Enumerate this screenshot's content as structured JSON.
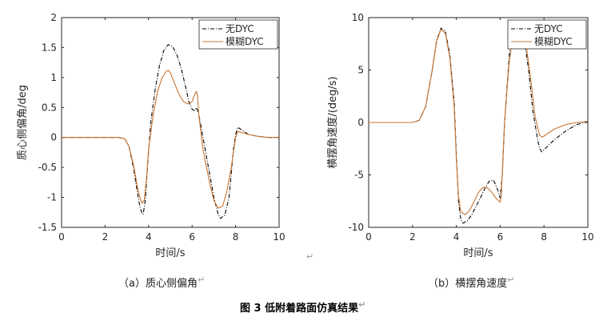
{
  "chart_data": [
    {
      "type": "line",
      "xlabel": "时间/s",
      "ylabel": "质心侧偏角/deg",
      "xlim": [
        0,
        10
      ],
      "ylim": [
        -1.5,
        2
      ],
      "xticks": [
        "0",
        "2",
        "4",
        "6",
        "8",
        "10"
      ],
      "yticks": [
        "-1.5",
        "-1",
        "-0.5",
        "0",
        "0.5",
        "1",
        "1.5",
        "2"
      ],
      "legend_position": "top-right",
      "caption": "（a）质心侧偏角",
      "series": [
        {
          "name": "无DYC",
          "color": "#000000",
          "style": "dashdot",
          "x": [
            0,
            2.6,
            2.9,
            3.1,
            3.3,
            3.5,
            3.6,
            3.7,
            3.75,
            3.85,
            3.95,
            4.1,
            4.3,
            4.5,
            4.7,
            4.9,
            5.1,
            5.3,
            5.5,
            5.7,
            5.85,
            6.0,
            6.1,
            6.2,
            6.3,
            6.5,
            6.8,
            7.0,
            7.2,
            7.3,
            7.5,
            7.7,
            7.8,
            7.9,
            8.0,
            8.1,
            8.3,
            8.6,
            9.0,
            9.5,
            10
          ],
          "y": [
            0,
            0,
            -0.02,
            -0.15,
            -0.5,
            -0.95,
            -1.15,
            -1.27,
            -1.28,
            -1.05,
            -0.5,
            0.25,
            0.8,
            1.2,
            1.45,
            1.55,
            1.52,
            1.38,
            1.15,
            0.85,
            0.6,
            0.47,
            0.45,
            0.5,
            0.4,
            0.0,
            -0.6,
            -1.0,
            -1.28,
            -1.35,
            -1.3,
            -1.0,
            -0.6,
            -0.2,
            0.05,
            0.17,
            0.12,
            0.05,
            0.02,
            0.0,
            0.0
          ]
        },
        {
          "name": "模糊DYC",
          "color": "#c87533",
          "style": "solid",
          "x": [
            0,
            2.6,
            2.9,
            3.1,
            3.3,
            3.5,
            3.6,
            3.7,
            3.8,
            3.9,
            4.0,
            4.2,
            4.4,
            4.6,
            4.8,
            4.9,
            5.0,
            5.2,
            5.4,
            5.6,
            5.8,
            6.0,
            6.1,
            6.2,
            6.25,
            6.3,
            6.5,
            6.8,
            7.0,
            7.2,
            7.4,
            7.6,
            7.8,
            8.0,
            8.1,
            8.3,
            8.6,
            9.0,
            9.5,
            10
          ],
          "y": [
            0,
            0,
            -0.02,
            -0.15,
            -0.45,
            -0.85,
            -1.0,
            -1.1,
            -1.05,
            -0.7,
            -0.2,
            0.35,
            0.75,
            0.98,
            1.1,
            1.12,
            1.08,
            0.9,
            0.72,
            0.6,
            0.56,
            0.6,
            0.7,
            0.77,
            0.7,
            0.4,
            -0.2,
            -0.75,
            -1.05,
            -1.18,
            -1.15,
            -0.9,
            -0.5,
            0.0,
            0.1,
            0.08,
            0.05,
            0.02,
            0.0,
            0.0
          ]
        }
      ]
    },
    {
      "type": "line",
      "xlabel": "时间/s",
      "ylabel": "横摆角速度/(deg/s)",
      "xlim": [
        0,
        10
      ],
      "ylim": [
        -10,
        10
      ],
      "xticks": [
        "0",
        "2",
        "4",
        "6",
        "8",
        "10"
      ],
      "yticks": [
        "-10",
        "-5",
        "0",
        "5",
        "10"
      ],
      "legend_position": "top-right",
      "caption": "（b）横摆角速度",
      "series": [
        {
          "name": "无DYC",
          "color": "#000000",
          "style": "dashdot",
          "x": [
            0,
            2.0,
            2.3,
            2.6,
            2.9,
            3.1,
            3.3,
            3.5,
            3.7,
            3.9,
            4.0,
            4.1,
            4.2,
            4.3,
            4.5,
            4.7,
            4.9,
            5.1,
            5.3,
            5.5,
            5.7,
            5.9,
            6.0,
            6.1,
            6.2,
            6.4,
            6.5,
            6.7,
            6.9,
            7.1,
            7.3,
            7.5,
            7.7,
            7.8,
            7.9,
            8.0,
            8.2,
            8.5,
            9.0,
            9.5,
            10
          ],
          "y": [
            0,
            0,
            0.2,
            1.5,
            5.0,
            7.8,
            9.0,
            8.7,
            6.5,
            2.0,
            -3.0,
            -7.5,
            -9.2,
            -9.6,
            -9.4,
            -8.8,
            -8.0,
            -7.2,
            -6.3,
            -5.6,
            -5.5,
            -6.5,
            -7.2,
            -5.0,
            0,
            6.0,
            8.2,
            9.2,
            9.1,
            8.0,
            5.0,
            1.0,
            -1.5,
            -2.5,
            -2.8,
            -2.6,
            -2.2,
            -1.6,
            -0.8,
            -0.2,
            0.1
          ]
        },
        {
          "name": "模糊DYC",
          "color": "#c87533",
          "style": "solid",
          "x": [
            0,
            2.0,
            2.3,
            2.6,
            2.9,
            3.1,
            3.3,
            3.5,
            3.7,
            3.9,
            4.0,
            4.1,
            4.2,
            4.4,
            4.6,
            4.8,
            5.0,
            5.2,
            5.4,
            5.6,
            5.8,
            6.0,
            6.05,
            6.2,
            6.4,
            6.6,
            6.8,
            7.0,
            7.2,
            7.4,
            7.6,
            7.8,
            7.9,
            8.0,
            8.2,
            8.5,
            9.0,
            9.5,
            10
          ],
          "y": [
            0,
            0,
            0.2,
            1.5,
            5.0,
            7.7,
            8.9,
            8.5,
            6.2,
            1.5,
            -3.5,
            -7.0,
            -8.5,
            -8.8,
            -8.4,
            -7.6,
            -6.7,
            -6.2,
            -6.2,
            -6.6,
            -7.2,
            -7.6,
            -7.0,
            0,
            5.5,
            8.6,
            9.1,
            8.8,
            7.2,
            4.0,
            0.5,
            -1.2,
            -1.4,
            -1.3,
            -1.0,
            -0.6,
            -0.2,
            0,
            0.1
          ]
        }
      ]
    }
  ],
  "figure_title": "图 3  低附着路面仿真结果",
  "return_marks": [
    "↵",
    "↵",
    "↵",
    "↵"
  ]
}
